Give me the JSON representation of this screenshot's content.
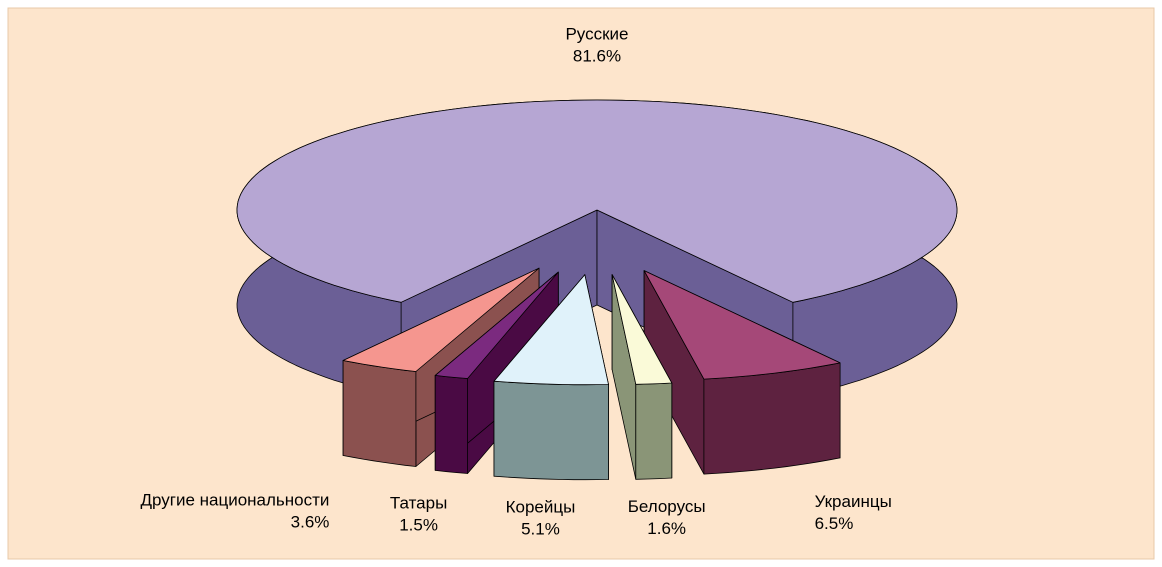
{
  "chart_data": {
    "type": "pie3d",
    "categories": [
      "Русские",
      "Украинцы",
      "Белорусы",
      "Корейцы",
      "Татары",
      "Другие национальности"
    ],
    "values": [
      81.6,
      6.5,
      1.6,
      5.1,
      1.5,
      3.6
    ],
    "value_labels": [
      "81.6%",
      "6.5%",
      "1.6%",
      "5.1%",
      "1.5%",
      "3.6%"
    ],
    "colors": [
      "#b6a6d3",
      "#a54878",
      "#fafad8",
      "#e0f2fa",
      "#7b2a7f",
      "#f5968f"
    ],
    "side_colors": [
      "#6b5f96",
      "#5e2240",
      "#8a9577",
      "#7d9595",
      "#4a0a44",
      "#8b514f"
    ]
  }
}
